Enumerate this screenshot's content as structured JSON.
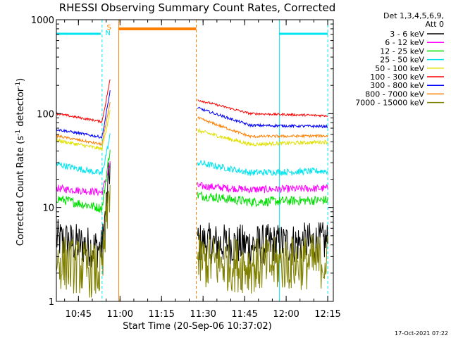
{
  "chart_data": {
    "type": "line",
    "title": "RHESSI Observing Summary Count Rates, Corrected",
    "xlabel": "Start Time (20-Sep-06 10:37:02)",
    "ylabel": "Corrected Count Rate (s",
    "ylabel_sup1": "-1",
    "ylabel_mid": " detector",
    "ylabel_sup2": "-1",
    "ylabel_end": ")",
    "footer": "17-Oct-2021 07:22",
    "legend_header": [
      "Det 1,3,4,5,6,9,",
      "Att 0"
    ],
    "y_scale": "log",
    "ylim": [
      1,
      1000
    ],
    "y_ticks": [
      {
        "value": 1,
        "label": "1"
      },
      {
        "value": 10,
        "label": "10"
      },
      {
        "value": 100,
        "label": "100"
      },
      {
        "value": 1000,
        "label": "1000"
      }
    ],
    "x_range_min": [
      0,
      100
    ],
    "x_ticks": [
      {
        "value": 7.97,
        "label": "10:45"
      },
      {
        "value": 22.97,
        "label": "11:00"
      },
      {
        "value": 37.97,
        "label": "11:15"
      },
      {
        "value": 52.97,
        "label": "11:30"
      },
      {
        "value": 67.97,
        "label": "11:45"
      },
      {
        "value": 82.97,
        "label": "12:00"
      },
      {
        "value": 97.97,
        "label": "12:15"
      }
    ],
    "flags": {
      "night_color": "#00e5ee",
      "night_lines": [
        {
          "x": 16.5,
          "dashed": true
        },
        {
          "x": 80.5,
          "dashed": false
        },
        {
          "x": 98.0,
          "dashed": true
        }
      ],
      "night_bars": [
        {
          "from": 0,
          "to": 16.0
        },
        {
          "from": 80.5,
          "to": 98.0
        }
      ],
      "saa_color": "#ff8000",
      "saa_lines": [
        {
          "x": 22.5,
          "dashed": false
        },
        {
          "x": 50.5,
          "dashed": true
        }
      ],
      "saa_bar": {
        "from": 22.5,
        "to": 50.5
      },
      "markers": [
        {
          "text": "S",
          "x": 19.0,
          "color": "#ff8000"
        },
        {
          "text": "N",
          "x": 18.6,
          "color": "#00e5ee"
        }
      ]
    },
    "series": [
      {
        "name": "3 - 6 keV",
        "color": "#000000",
        "level": 4.5,
        "noise": 0.22,
        "segments": [
          [
            {
              "x": 0,
              "y": 4.6
            },
            {
              "x": 16.5,
              "y": 3.6
            },
            {
              "x": 19.5,
              "y": 30
            }
          ],
          [
            {
              "x": 51,
              "y": 4.2
            },
            {
              "x": 70,
              "y": 4.0
            },
            {
              "x": 98,
              "y": 4.3
            }
          ]
        ]
      },
      {
        "name": "6 - 12 keV",
        "color": "#ff00ff",
        "noise": 0.04,
        "segments": [
          [
            {
              "x": 0,
              "y": 16
            },
            {
              "x": 16.5,
              "y": 14.5
            },
            {
              "x": 19.5,
              "y": 30
            }
          ],
          [
            {
              "x": 51,
              "y": 17
            },
            {
              "x": 70,
              "y": 15.5
            },
            {
              "x": 98,
              "y": 16
            }
          ]
        ]
      },
      {
        "name": "12 - 25 keV",
        "color": "#00e000",
        "noise": 0.05,
        "segments": [
          [
            {
              "x": 0,
              "y": 12.5
            },
            {
              "x": 16.5,
              "y": 9.8
            },
            {
              "x": 19.5,
              "y": 45
            }
          ],
          [
            {
              "x": 51,
              "y": 13.5
            },
            {
              "x": 70,
              "y": 11.5
            },
            {
              "x": 98,
              "y": 12
            }
          ]
        ]
      },
      {
        "name": "25 - 50 keV",
        "color": "#00e5ee",
        "noise": 0.035,
        "segments": [
          [
            {
              "x": 0,
              "y": 29
            },
            {
              "x": 16.5,
              "y": 23
            },
            {
              "x": 19.5,
              "y": 60
            }
          ],
          [
            {
              "x": 51,
              "y": 30
            },
            {
              "x": 70,
              "y": 23.5
            },
            {
              "x": 98,
              "y": 24.5
            }
          ]
        ]
      },
      {
        "name": "50 - 100 keV",
        "color": "#e0e000",
        "noise": 0.02,
        "segments": [
          [
            {
              "x": 0,
              "y": 52
            },
            {
              "x": 16.5,
              "y": 42
            },
            {
              "x": 19.5,
              "y": 110
            }
          ],
          [
            {
              "x": 51,
              "y": 66
            },
            {
              "x": 70,
              "y": 47
            },
            {
              "x": 98,
              "y": 50
            }
          ]
        ]
      },
      {
        "name": "100 - 300 keV",
        "color": "#ff0000",
        "noise": 0.012,
        "segments": [
          [
            {
              "x": 0,
              "y": 100
            },
            {
              "x": 16.5,
              "y": 82
            },
            {
              "x": 19.5,
              "y": 240
            }
          ],
          [
            {
              "x": 51,
              "y": 140
            },
            {
              "x": 70,
              "y": 100
            },
            {
              "x": 98,
              "y": 95
            }
          ]
        ]
      },
      {
        "name": "300 - 800 keV",
        "color": "#0000ff",
        "noise": 0.014,
        "segments": [
          [
            {
              "x": 0,
              "y": 68
            },
            {
              "x": 16.5,
              "y": 56
            },
            {
              "x": 19.5,
              "y": 180
            }
          ],
          [
            {
              "x": 51,
              "y": 115
            },
            {
              "x": 70,
              "y": 75
            },
            {
              "x": 98,
              "y": 73
            }
          ]
        ]
      },
      {
        "name": "800 - 7000 keV",
        "color": "#ff8000",
        "noise": 0.014,
        "segments": [
          [
            {
              "x": 0,
              "y": 58
            },
            {
              "x": 16.5,
              "y": 47
            },
            {
              "x": 19.5,
              "y": 140
            }
          ],
          [
            {
              "x": 51,
              "y": 90
            },
            {
              "x": 70,
              "y": 57
            },
            {
              "x": 98,
              "y": 58
            }
          ]
        ]
      },
      {
        "name": "7000 - 15000 keV",
        "color": "#808000",
        "level": 2.6,
        "noise": 0.3,
        "segments": [
          [
            {
              "x": 0,
              "y": 2.7
            },
            {
              "x": 16.5,
              "y": 2.0
            },
            {
              "x": 19.5,
              "y": 20
            }
          ],
          [
            {
              "x": 51,
              "y": 2.7
            },
            {
              "x": 70,
              "y": 2.4
            },
            {
              "x": 98,
              "y": 2.7
            }
          ]
        ]
      }
    ],
    "saa_plateau": {
      "y": 800
    }
  }
}
